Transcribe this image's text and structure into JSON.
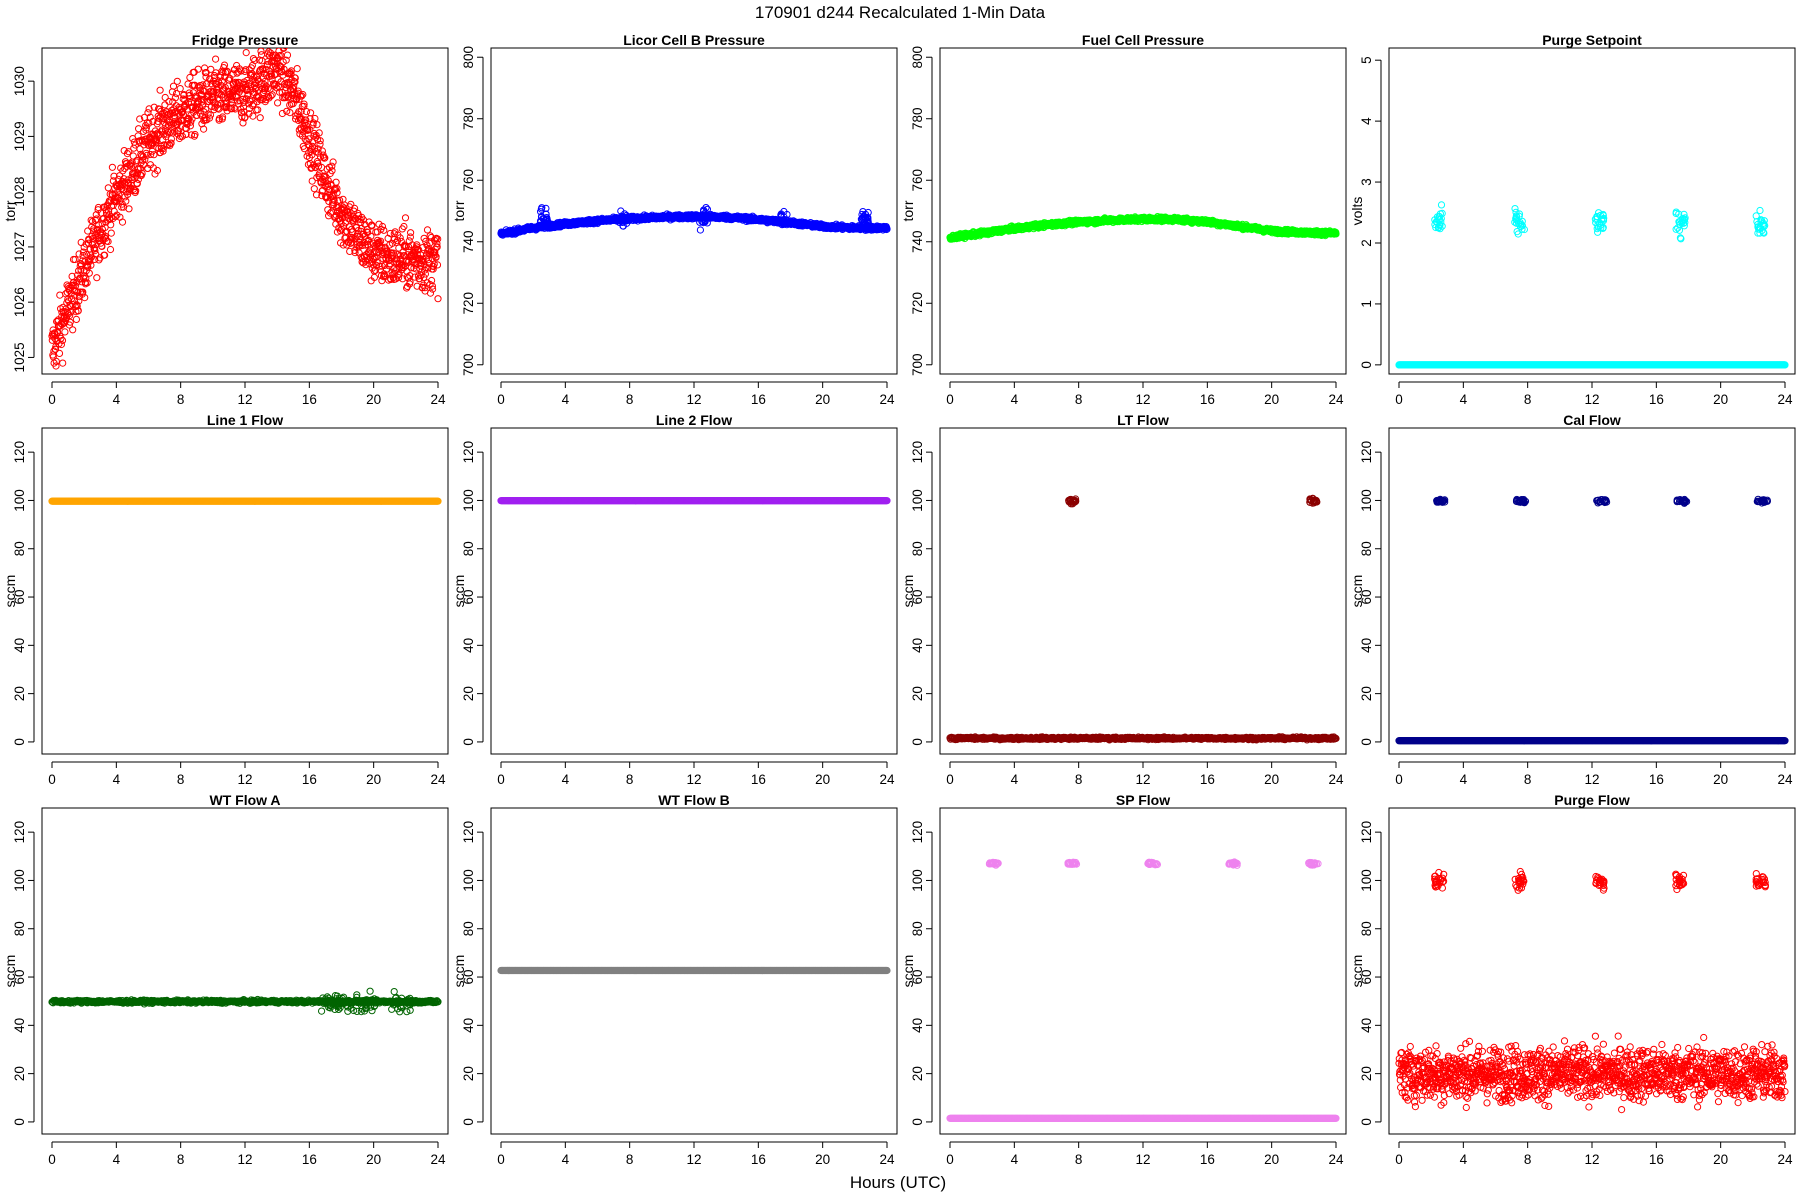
{
  "figure": {
    "title": "170901   d244   Recalculated 1-Min Data",
    "xlabel": "Hours (UTC)"
  },
  "chart_data": [
    {
      "type": "scatter",
      "title": "Fridge Pressure",
      "ylabel": "torr",
      "color": "#ff0000",
      "marker": "open-circle",
      "xlim": [
        0,
        24
      ],
      "ylim": [
        1024.7,
        1030.6
      ],
      "x_ticks": [
        0,
        4,
        8,
        12,
        16,
        20,
        24
      ],
      "y_ticks": [
        1025,
        1026,
        1027,
        1028,
        1029,
        1030
      ],
      "x_ticklabels": [
        "0",
        "4",
        "8",
        "12",
        "16",
        "20",
        "24"
      ],
      "y_ticklabels": [
        "1025",
        "1026",
        "1027",
        "1028",
        "1029",
        "1030"
      ],
      "series": [
        {
          "kind": "noise",
          "x_range": [
            0,
            24
          ],
          "curve": [
            [
              0,
              1025.1
            ],
            [
              1,
              1025.9
            ],
            [
              2,
              1026.6
            ],
            [
              3,
              1027.3
            ],
            [
              4,
              1027.9
            ],
            [
              5,
              1028.4
            ],
            [
              6,
              1028.9
            ],
            [
              7,
              1029.2
            ],
            [
              8,
              1029.4
            ],
            [
              9,
              1029.6
            ],
            [
              10,
              1029.7
            ],
            [
              11,
              1029.75
            ],
            [
              12,
              1029.8
            ],
            [
              13,
              1030.0
            ],
            [
              14,
              1030.2
            ],
            [
              15,
              1029.8
            ],
            [
              16,
              1029.0
            ],
            [
              17,
              1028.2
            ],
            [
              18,
              1027.6
            ],
            [
              19,
              1027.2
            ],
            [
              20,
              1026.9
            ],
            [
              21,
              1026.8
            ],
            [
              22,
              1026.8
            ],
            [
              23,
              1026.75
            ],
            [
              24,
              1026.8
            ]
          ],
          "noise": 0.28
        }
      ]
    },
    {
      "type": "scatter",
      "title": "Licor Cell B Pressure",
      "ylabel": "torr",
      "color": "#0000ff",
      "marker": "open-circle",
      "xlim": [
        0,
        24
      ],
      "ylim": [
        697,
        803
      ],
      "x_ticks": [
        0,
        4,
        8,
        12,
        16,
        20,
        24
      ],
      "y_ticks": [
        700,
        720,
        740,
        760,
        780,
        800
      ],
      "x_ticklabels": [
        "0",
        "4",
        "8",
        "12",
        "16",
        "20",
        "24"
      ],
      "y_ticklabels": [
        "700",
        "720",
        "740",
        "760",
        "780",
        "800"
      ],
      "series": [
        {
          "kind": "noise",
          "x_range": [
            0,
            24
          ],
          "curve": [
            [
              0,
              742.5
            ],
            [
              2,
              744.5
            ],
            [
              4,
              745.8
            ],
            [
              6,
              746.8
            ],
            [
              8,
              747.5
            ],
            [
              10,
              748.0
            ],
            [
              12,
              748.2
            ],
            [
              14,
              748.0
            ],
            [
              16,
              747.2
            ],
            [
              18,
              746.2
            ],
            [
              20,
              745.0
            ],
            [
              22,
              744.5
            ],
            [
              24,
              744.5
            ]
          ],
          "noise": 0.35
        },
        {
          "kind": "cluster",
          "xs": [
            2.7,
            7.6,
            12.6,
            17.6,
            22.6
          ],
          "y": 747.5,
          "width": 0.5,
          "spread": 1.6
        }
      ]
    },
    {
      "type": "scatter",
      "title": "Fuel Cell Pressure",
      "ylabel": "torr",
      "color": "#00ff00",
      "marker": "open-circle",
      "xlim": [
        0,
        24
      ],
      "ylim": [
        697,
        803
      ],
      "x_ticks": [
        0,
        4,
        8,
        12,
        16,
        20,
        24
      ],
      "y_ticks": [
        700,
        720,
        740,
        760,
        780,
        800
      ],
      "x_ticklabels": [
        "0",
        "4",
        "8",
        "12",
        "16",
        "20",
        "24"
      ],
      "y_ticklabels": [
        "700",
        "720",
        "740",
        "760",
        "780",
        "800"
      ],
      "series": [
        {
          "kind": "noise",
          "x_range": [
            0,
            24
          ],
          "curve": [
            [
              0,
              741.3
            ],
            [
              2,
              742.8
            ],
            [
              4,
              744.3
            ],
            [
              6,
              745.5
            ],
            [
              8,
              746.4
            ],
            [
              10,
              747.0
            ],
            [
              12,
              747.4
            ],
            [
              14,
              747.3
            ],
            [
              16,
              746.5
            ],
            [
              18,
              745.0
            ],
            [
              20,
              743.5
            ],
            [
              22,
              743.0
            ],
            [
              24,
              742.8
            ]
          ],
          "noise": 0.35
        }
      ]
    },
    {
      "type": "scatter",
      "title": "Purge Setpoint",
      "ylabel": "volts",
      "color": "#00ffff",
      "marker": "open-circle",
      "xlim": [
        0,
        24
      ],
      "ylim": [
        -0.15,
        5.2
      ],
      "x_ticks": [
        0,
        4,
        8,
        12,
        16,
        20,
        24
      ],
      "y_ticks": [
        0,
        1,
        2,
        3,
        4,
        5
      ],
      "x_ticklabels": [
        "0",
        "4",
        "8",
        "12",
        "16",
        "20",
        "24"
      ],
      "y_ticklabels": [
        "0",
        "1",
        "2",
        "3",
        "4",
        "5"
      ],
      "series": [
        {
          "kind": "line",
          "x_range": [
            0,
            24
          ],
          "y": 0.0
        },
        {
          "kind": "cluster",
          "xs": [
            2.5,
            7.5,
            12.5,
            17.5,
            22.5
          ],
          "y": 2.32,
          "width": 0.6,
          "spread": 0.1
        }
      ]
    },
    {
      "type": "scatter",
      "title": "Line 1 Flow",
      "ylabel": "sccm",
      "color": "#ffa500",
      "marker": "open-circle",
      "xlim": [
        0,
        24
      ],
      "ylim": [
        -5,
        130
      ],
      "x_ticks": [
        0,
        4,
        8,
        12,
        16,
        20,
        24
      ],
      "y_ticks": [
        0,
        20,
        40,
        60,
        80,
        100,
        120
      ],
      "x_ticklabels": [
        "0",
        "4",
        "8",
        "12",
        "16",
        "20",
        "24"
      ],
      "y_ticklabels": [
        "0",
        "20",
        "40",
        "60",
        "80",
        "100",
        "120"
      ],
      "series": [
        {
          "kind": "line",
          "x_range": [
            0,
            24
          ],
          "y": 99.7
        }
      ]
    },
    {
      "type": "scatter",
      "title": "Line 2 Flow",
      "ylabel": "sccm",
      "color": "#a020f0",
      "marker": "open-circle",
      "xlim": [
        0,
        24
      ],
      "ylim": [
        -5,
        130
      ],
      "x_ticks": [
        0,
        4,
        8,
        12,
        16,
        20,
        24
      ],
      "y_ticks": [
        0,
        20,
        40,
        60,
        80,
        100,
        120
      ],
      "x_ticklabels": [
        "0",
        "4",
        "8",
        "12",
        "16",
        "20",
        "24"
      ],
      "y_ticklabels": [
        "0",
        "20",
        "40",
        "60",
        "80",
        "100",
        "120"
      ],
      "series": [
        {
          "kind": "line",
          "x_range": [
            0,
            24
          ],
          "y": 99.9
        }
      ]
    },
    {
      "type": "scatter",
      "title": "LT Flow",
      "ylabel": "sccm",
      "color": "#8b0000",
      "marker": "open-circle",
      "xlim": [
        0,
        24
      ],
      "ylim": [
        -5,
        130
      ],
      "x_ticks": [
        0,
        4,
        8,
        12,
        16,
        20,
        24
      ],
      "y_ticks": [
        0,
        20,
        40,
        60,
        80,
        100,
        120
      ],
      "x_ticklabels": [
        "0",
        "4",
        "8",
        "12",
        "16",
        "20",
        "24"
      ],
      "y_ticklabels": [
        "0",
        "20",
        "40",
        "60",
        "80",
        "100",
        "120"
      ],
      "series": [
        {
          "kind": "line",
          "x_range": [
            0,
            24
          ],
          "y": 1.5,
          "noise": 0.25
        },
        {
          "kind": "cluster",
          "xs": [
            7.6,
            22.6
          ],
          "y": 99.7,
          "width": 0.45,
          "spread": 0.6
        }
      ]
    },
    {
      "type": "scatter",
      "title": "Cal Flow",
      "ylabel": "sccm",
      "color": "#00008b",
      "marker": "open-circle",
      "xlim": [
        0,
        24
      ],
      "ylim": [
        -5,
        130
      ],
      "x_ticks": [
        0,
        4,
        8,
        12,
        16,
        20,
        24
      ],
      "y_ticks": [
        0,
        20,
        40,
        60,
        80,
        100,
        120
      ],
      "x_ticklabels": [
        "0",
        "4",
        "8",
        "12",
        "16",
        "20",
        "24"
      ],
      "y_ticklabels": [
        "0",
        "20",
        "40",
        "60",
        "80",
        "100",
        "120"
      ],
      "series": [
        {
          "kind": "line",
          "x_range": [
            0,
            24
          ],
          "y": 0.5
        },
        {
          "kind": "cluster",
          "xs": [
            2.6,
            7.6,
            12.6,
            17.6,
            22.6
          ],
          "y": 99.8,
          "width": 0.65,
          "spread": 0.4
        }
      ]
    },
    {
      "type": "scatter",
      "title": "WT Flow A",
      "ylabel": "sccm",
      "color": "#006400",
      "marker": "open-circle",
      "xlim": [
        0,
        24
      ],
      "ylim": [
        -5,
        130
      ],
      "x_ticks": [
        0,
        4,
        8,
        12,
        16,
        20,
        24
      ],
      "y_ticks": [
        0,
        20,
        40,
        60,
        80,
        100,
        120
      ],
      "x_ticklabels": [
        "0",
        "4",
        "8",
        "12",
        "16",
        "20",
        "24"
      ],
      "y_ticklabels": [
        "0",
        "20",
        "40",
        "60",
        "80",
        "100",
        "120"
      ],
      "series": [
        {
          "kind": "line",
          "x_range": [
            0,
            24
          ],
          "y": 49.8,
          "noise": 0.3
        },
        {
          "kind": "cluster",
          "xs": [
            17.3,
            18.2,
            19.5,
            21.7
          ],
          "y": 49.0,
          "width": 1.2,
          "spread": 2.2
        }
      ]
    },
    {
      "type": "scatter",
      "title": "WT Flow B",
      "ylabel": "sccm",
      "color": "#808080",
      "marker": "open-circle",
      "xlim": [
        0,
        24
      ],
      "ylim": [
        -5,
        130
      ],
      "x_ticks": [
        0,
        4,
        8,
        12,
        16,
        20,
        24
      ],
      "y_ticks": [
        0,
        20,
        40,
        60,
        80,
        100,
        120
      ],
      "x_ticklabels": [
        "0",
        "4",
        "8",
        "12",
        "16",
        "20",
        "24"
      ],
      "y_ticklabels": [
        "0",
        "20",
        "40",
        "60",
        "80",
        "100",
        "120"
      ],
      "series": [
        {
          "kind": "line",
          "x_range": [
            0,
            24
          ],
          "y": 62.7
        }
      ]
    },
    {
      "type": "scatter",
      "title": "SP Flow",
      "ylabel": "sccm",
      "color": "#ee82ee",
      "marker": "open-circle",
      "xlim": [
        0,
        24
      ],
      "ylim": [
        -5,
        130
      ],
      "x_ticks": [
        0,
        4,
        8,
        12,
        16,
        20,
        24
      ],
      "y_ticks": [
        0,
        20,
        40,
        60,
        80,
        100,
        120
      ],
      "x_ticklabels": [
        "0",
        "4",
        "8",
        "12",
        "16",
        "20",
        "24"
      ],
      "y_ticklabels": [
        "0",
        "20",
        "40",
        "60",
        "80",
        "100",
        "120"
      ],
      "series": [
        {
          "kind": "line",
          "x_range": [
            0,
            24
          ],
          "y": 1.5
        },
        {
          "kind": "cluster",
          "xs": [
            2.7,
            7.6,
            12.6,
            17.6,
            22.6
          ],
          "y": 107.0,
          "width": 0.6,
          "spread": 0.3
        }
      ]
    },
    {
      "type": "scatter",
      "title": "Purge Flow",
      "ylabel": "sccm",
      "color": "#ff0000",
      "marker": "open-circle",
      "xlim": [
        0,
        24
      ],
      "ylim": [
        -5,
        130
      ],
      "x_ticks": [
        0,
        4,
        8,
        12,
        16,
        20,
        24
      ],
      "y_ticks": [
        0,
        20,
        40,
        60,
        80,
        100,
        120
      ],
      "x_ticklabels": [
        "0",
        "4",
        "8",
        "12",
        "16",
        "20",
        "24"
      ],
      "y_ticklabels": [
        "0",
        "20",
        "40",
        "60",
        "80",
        "100",
        "120"
      ],
      "series": [
        {
          "kind": "noise",
          "x_range": [
            0,
            24
          ],
          "curve": [
            [
              0,
              20
            ],
            [
              24,
              20
            ]
          ],
          "noise": 5.5
        },
        {
          "kind": "cluster",
          "xs": [
            2.5,
            7.5,
            12.5,
            17.5,
            22.5
          ],
          "y": 99.5,
          "width": 0.6,
          "spread": 1.8
        }
      ]
    }
  ]
}
